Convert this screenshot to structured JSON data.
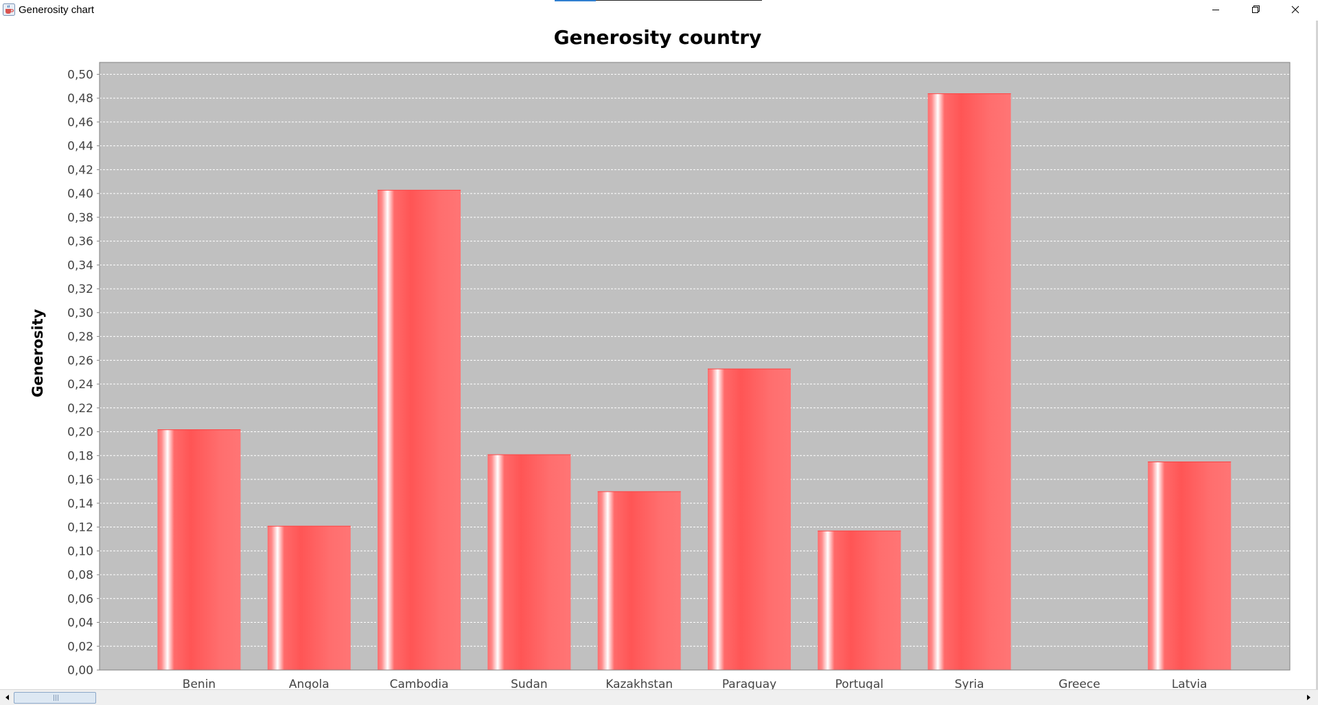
{
  "window": {
    "title": "Generosity chart",
    "icons": {
      "app": "java-cup-icon",
      "minimize": "minimize-icon",
      "restore": "restore-icon",
      "close": "close-icon"
    }
  },
  "scrollbar": {
    "left_icon": "arrow-left-icon",
    "right_icon": "arrow-right-icon"
  },
  "colors": {
    "plot_background": "#c0c0c0",
    "bar": "#ff5555",
    "bar_highlight": "#ffffff",
    "grid": "#ffffff"
  },
  "chart_data": {
    "type": "bar",
    "title": "Generosity country",
    "xlabel": "",
    "ylabel": "Generosity",
    "categories": [
      "Benin",
      "Angola",
      "Cambodia",
      "Sudan",
      "Kazakhstan",
      "Paraguay",
      "Portugal",
      "Syria",
      "Greece",
      "Latvia"
    ],
    "values": [
      0.202,
      0.121,
      0.403,
      0.181,
      0.15,
      0.253,
      0.117,
      0.484,
      0.0,
      0.175
    ],
    "ylim": [
      0.0,
      0.51
    ],
    "yticks": [
      "0,00",
      "0,02",
      "0,04",
      "0,06",
      "0,08",
      "0,10",
      "0,12",
      "0,14",
      "0,16",
      "0,18",
      "0,20",
      "0,22",
      "0,24",
      "0,26",
      "0,28",
      "0,30",
      "0,32",
      "0,34",
      "0,36",
      "0,38",
      "0,40",
      "0,42",
      "0,44",
      "0,46",
      "0,48",
      "0,50"
    ],
    "grid": true,
    "legend": "none"
  }
}
